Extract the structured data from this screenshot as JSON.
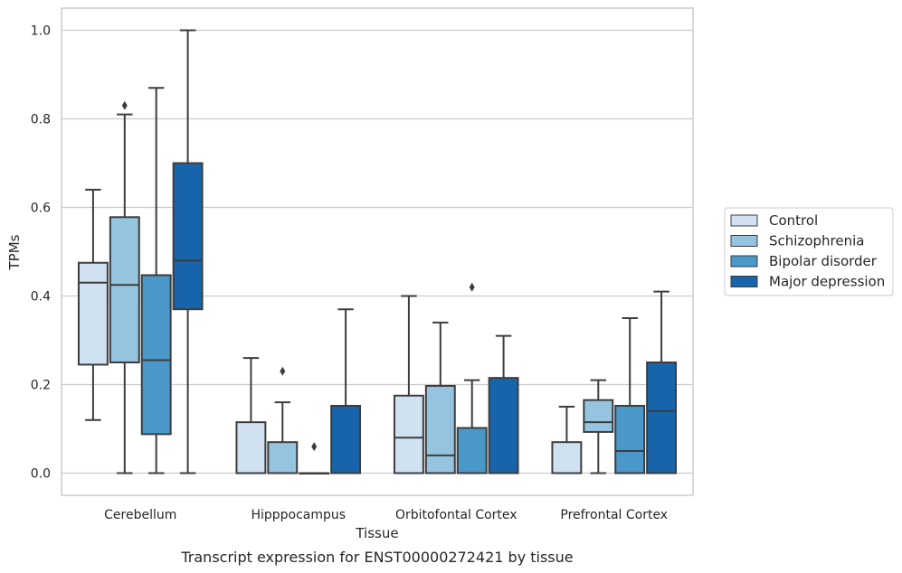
{
  "caption": "Transcript expression for ENST00000272421 by tissue",
  "chart_data": {
    "type": "boxplot",
    "xlabel": "Tissue",
    "ylabel": "TPMs",
    "ylim": [
      -0.05,
      1.05
    ],
    "yticks": [
      "0.0",
      "0.2",
      "0.4",
      "0.6",
      "0.8",
      "1.0"
    ],
    "ytick_values": [
      0,
      0.2,
      0.4,
      0.6,
      0.8,
      1.0
    ],
    "grid": true,
    "legend_position": "right",
    "categories": [
      "Cerebellum",
      "Hipppocampus",
      "Orbitofontal Cortex",
      "Prefrontal Cortex"
    ],
    "series": [
      {
        "name": "Control",
        "color": "#d0e1f2",
        "boxes": [
          {
            "whislo": 0.12,
            "q1": 0.245,
            "med": 0.43,
            "q3": 0.475,
            "whishi": 0.64,
            "fliers": []
          },
          {
            "whislo": 0.0,
            "q1": 0.0,
            "med": 0.0,
            "q3": 0.115,
            "whishi": 0.26,
            "fliers": []
          },
          {
            "whislo": 0.0,
            "q1": 0.0,
            "med": 0.08,
            "q3": 0.175,
            "whishi": 0.4,
            "fliers": []
          },
          {
            "whislo": 0.0,
            "q1": 0.0,
            "med": 0.0,
            "q3": 0.07,
            "whishi": 0.15,
            "fliers": []
          }
        ]
      },
      {
        "name": "Schizophrenia",
        "color": "#94c4df",
        "boxes": [
          {
            "whislo": 0.0,
            "q1": 0.25,
            "med": 0.425,
            "q3": 0.578,
            "whishi": 0.81,
            "fliers": [
              0.83
            ]
          },
          {
            "whislo": 0.0,
            "q1": 0.0,
            "med": 0.0,
            "q3": 0.07,
            "whishi": 0.16,
            "fliers": [
              0.23
            ]
          },
          {
            "whislo": 0.0,
            "q1": 0.0,
            "med": 0.04,
            "q3": 0.197,
            "whishi": 0.34,
            "fliers": []
          },
          {
            "whislo": 0.0,
            "q1": 0.093,
            "med": 0.115,
            "q3": 0.165,
            "whishi": 0.21,
            "fliers": []
          }
        ]
      },
      {
        "name": "Bipolar disorder",
        "color": "#4a98c9",
        "boxes": [
          {
            "whislo": 0.0,
            "q1": 0.088,
            "med": 0.255,
            "q3": 0.447,
            "whishi": 0.87,
            "fliers": []
          },
          {
            "whislo": 0.0,
            "q1": 0.0,
            "med": 0.0,
            "q3": 0.0,
            "whishi": 0.0,
            "fliers": [
              0.06
            ]
          },
          {
            "whislo": 0.0,
            "q1": 0.0,
            "med": 0.0,
            "q3": 0.102,
            "whishi": 0.21,
            "fliers": [
              0.42
            ]
          },
          {
            "whislo": 0.0,
            "q1": 0.0,
            "med": 0.05,
            "q3": 0.152,
            "whishi": 0.35,
            "fliers": []
          }
        ]
      },
      {
        "name": "Major depression",
        "color": "#1764ab",
        "boxes": [
          {
            "whislo": 0.0,
            "q1": 0.37,
            "med": 0.48,
            "q3": 0.7,
            "whishi": 1.0,
            "fliers": []
          },
          {
            "whislo": 0.0,
            "q1": 0.0,
            "med": 0.0,
            "q3": 0.152,
            "whishi": 0.37,
            "fliers": []
          },
          {
            "whislo": 0.0,
            "q1": 0.0,
            "med": 0.0,
            "q3": 0.215,
            "whishi": 0.31,
            "fliers": []
          },
          {
            "whislo": 0.0,
            "q1": 0.0,
            "med": 0.14,
            "q3": 0.25,
            "whishi": 0.41,
            "fliers": []
          }
        ]
      }
    ]
  }
}
